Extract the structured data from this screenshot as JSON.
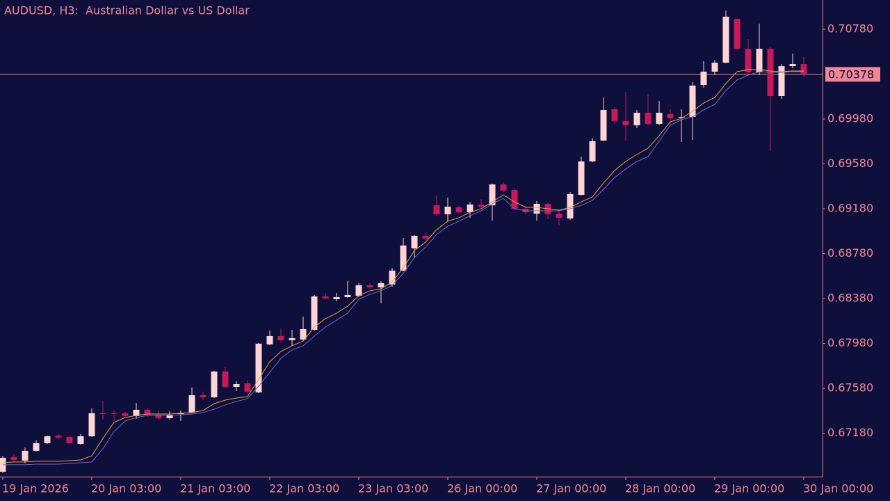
{
  "chart_data": {
    "type": "candlestick",
    "title": "AUDUSD, H3:  Australian Dollar vs US Dollar",
    "categories": [
      "19 Jan 2026",
      null,
      null,
      null,
      null,
      null,
      null,
      null,
      "20 Jan 03:00",
      null,
      null,
      null,
      null,
      null,
      null,
      null,
      "21 Jan 03:00",
      null,
      null,
      null,
      null,
      null,
      null,
      null,
      "22 Jan 03:00",
      null,
      null,
      null,
      null,
      null,
      null,
      null,
      "23 Jan 03:00",
      null,
      null,
      null,
      null,
      null,
      null,
      null,
      "26 Jan 00:00",
      null,
      null,
      null,
      null,
      null,
      null,
      null,
      "27 Jan 00:00",
      null,
      null,
      null,
      null,
      null,
      null,
      null,
      "28 Jan 00:00",
      null,
      null,
      null,
      null,
      null,
      null,
      null,
      "29 Jan 00:00",
      null,
      null,
      null,
      null,
      null,
      null,
      null,
      "30 Jan 00:00"
    ],
    "open": [
      0.66837,
      0.66967,
      0.66936,
      0.67023,
      0.67091,
      0.67159,
      0.67147,
      0.67085,
      0.67153,
      0.67358,
      0.67358,
      0.67358,
      0.67333,
      0.67389,
      0.67345,
      0.67314,
      0.67351,
      0.67364,
      0.67519,
      0.675,
      0.6773,
      0.67593,
      0.67624,
      0.67544,
      0.67971,
      0.68046,
      0.68009,
      0.68015,
      0.68102,
      0.68399,
      0.68374,
      0.68393,
      0.68405,
      0.68498,
      0.6848,
      0.68505,
      0.68629,
      0.68827,
      0.68939,
      0.69211,
      0.69131,
      0.69193,
      0.69149,
      0.69218,
      0.69211,
      0.69397,
      0.69348,
      0.6918,
      0.69137,
      0.69224,
      0.69137,
      0.69094,
      0.69304,
      0.69602,
      0.69788,
      0.70067,
      0.69962,
      0.69924,
      0.70036,
      0.69937,
      0.70024,
      0.69993,
      0.69999,
      0.70284,
      0.70402,
      0.70482,
      0.70873,
      0.70606,
      0.70396,
      0.70606,
      0.70185,
      0.70451,
      0.7047
    ],
    "high": [
      0.66979,
      0.66998,
      0.67054,
      0.67116,
      0.67159,
      0.67172,
      0.67153,
      0.67172,
      0.67401,
      0.67469,
      0.67382,
      0.6737,
      0.67451,
      0.67401,
      0.67382,
      0.67376,
      0.67382,
      0.67587,
      0.6755,
      0.67736,
      0.67773,
      0.67643,
      0.67649,
      0.67984,
      0.68095,
      0.68114,
      0.68102,
      0.68219,
      0.68412,
      0.6843,
      0.6843,
      0.68536,
      0.68517,
      0.68517,
      0.68536,
      0.68653,
      0.6892,
      0.68945,
      0.6897,
      0.69298,
      0.6928,
      0.69205,
      0.69242,
      0.69267,
      0.69404,
      0.69416,
      0.6936,
      0.69205,
      0.69249,
      0.69242,
      0.69168,
      0.69329,
      0.69645,
      0.69813,
      0.70172,
      0.70086,
      0.70222,
      0.70061,
      0.70203,
      0.70141,
      0.70067,
      0.70067,
      0.70309,
      0.70495,
      0.70507,
      0.70947,
      0.70873,
      0.70693,
      0.7083,
      0.70619,
      0.7047,
      0.70563,
      0.70532
    ],
    "low": [
      0.66824,
      0.66924,
      0.66911,
      0.67017,
      0.67085,
      0.67128,
      0.67085,
      0.67079,
      0.67147,
      0.67302,
      0.67289,
      0.6732,
      0.67308,
      0.67327,
      0.67296,
      0.67302,
      0.67289,
      0.67358,
      0.67475,
      0.67494,
      0.67581,
      0.67556,
      0.67531,
      0.67537,
      0.67965,
      0.6799,
      0.67959,
      0.68002,
      0.68095,
      0.68374,
      0.68356,
      0.68387,
      0.68393,
      0.68467,
      0.68337,
      0.68486,
      0.68622,
      0.68746,
      0.68901,
      0.69118,
      0.69069,
      0.69137,
      0.691,
      0.6918,
      0.69075,
      0.69329,
      0.69168,
      0.69131,
      0.69075,
      0.69087,
      0.69032,
      0.69081,
      0.69298,
      0.69596,
      0.69782,
      0.69937,
      0.69788,
      0.699,
      0.69924,
      0.69924,
      0.69924,
      0.69776,
      0.69794,
      0.70259,
      0.70371,
      0.70476,
      0.70594,
      0.70389,
      0.70371,
      0.69695,
      0.7016,
      0.70433,
      0.70358
    ],
    "close": [
      0.66961,
      0.66942,
      0.67023,
      0.67091,
      0.67153,
      0.67141,
      0.67091,
      0.67153,
      0.67358,
      0.67351,
      0.67351,
      0.67333,
      0.67389,
      0.67345,
      0.67314,
      0.67345,
      0.67358,
      0.67519,
      0.675,
      0.6773,
      0.67593,
      0.67618,
      0.6755,
      0.67978,
      0.68046,
      0.68009,
      0.68027,
      0.68108,
      0.68399,
      0.68381,
      0.68393,
      0.68412,
      0.68498,
      0.6848,
      0.68517,
      0.68629,
      0.68853,
      0.68939,
      0.68914,
      0.69131,
      0.69199,
      0.69149,
      0.69218,
      0.69199,
      0.69397,
      0.69342,
      0.6918,
      0.69149,
      0.69224,
      0.69131,
      0.691,
      0.69311,
      0.69602,
      0.69782,
      0.70061,
      0.69962,
      0.69924,
      0.70036,
      0.69937,
      0.70036,
      0.69986,
      0.69999,
      0.70278,
      0.70402,
      0.70482,
      0.70892,
      0.70606,
      0.70396,
      0.70606,
      0.70185,
      0.70451,
      0.7047,
      0.70378
    ],
    "up_color": "#ffd4d4",
    "down_color": "#c8185a",
    "series": [
      {
        "color": "#f0a030",
        "values": [
          0.66917,
          0.66924,
          0.66924,
          0.6693,
          0.6693,
          0.6693,
          0.66936,
          0.66942,
          0.66979,
          0.67134,
          0.67277,
          0.6732,
          0.67339,
          0.67351,
          0.67351,
          0.67351,
          0.67358,
          0.67364,
          0.67382,
          0.67444,
          0.67475,
          0.67494,
          0.67506,
          0.67661,
          0.67816,
          0.67909,
          0.67959,
          0.68002,
          0.68126,
          0.68201,
          0.6825,
          0.68312,
          0.68405,
          0.68449,
          0.68467,
          0.68529,
          0.68653,
          0.68808,
          0.68883,
          0.68994,
          0.69069,
          0.691,
          0.69149,
          0.6918,
          0.69242,
          0.69304,
          0.69242,
          0.69193,
          0.69193,
          0.6918,
          0.69168,
          0.69193,
          0.69242,
          0.69286,
          0.6941,
          0.69521,
          0.69602,
          0.69664,
          0.6972,
          0.69831,
          0.69955,
          0.69986,
          0.70048,
          0.70123,
          0.70172,
          0.70296,
          0.70402,
          0.7042,
          0.7042,
          0.70408,
          0.70402,
          0.70408,
          0.70408
        ]
      },
      {
        "color": "#6a6ad8",
        "values": [
          0.66899,
          0.66899,
          0.66899,
          0.66905,
          0.66905,
          0.66905,
          0.66911,
          0.66917,
          0.66924,
          0.67041,
          0.67196,
          0.67289,
          0.6732,
          0.67339,
          0.67339,
          0.67339,
          0.67345,
          0.67351,
          0.67364,
          0.67395,
          0.67432,
          0.67463,
          0.67488,
          0.67599,
          0.67723,
          0.67847,
          0.67922,
          0.67959,
          0.68046,
          0.68126,
          0.68188,
          0.6825,
          0.68374,
          0.68418,
          0.68449,
          0.68498,
          0.68604,
          0.68746,
          0.68839,
          0.68951,
          0.69025,
          0.69069,
          0.69118,
          0.69162,
          0.69224,
          0.69273,
          0.6918,
          0.69162,
          0.69162,
          0.69162,
          0.69162,
          0.6918,
          0.69211,
          0.69255,
          0.69354,
          0.69459,
          0.69534,
          0.69602,
          0.69645,
          0.69782,
          0.69924,
          0.69974,
          0.69999,
          0.70061,
          0.7011,
          0.70234,
          0.70327,
          0.70371,
          0.70402,
          0.70396,
          0.70396,
          0.70402,
          0.70402
        ]
      }
    ],
    "price_line": 0.70378,
    "price_line_color": "#f08896",
    "ylim": [
      0.66793,
      0.71022
    ],
    "yticks": [
      {
        "value": 0.6718,
        "label": "0.67180"
      },
      {
        "value": 0.6758,
        "label": "0.67580"
      },
      {
        "value": 0.6798,
        "label": "0.67980"
      },
      {
        "value": 0.6838,
        "label": "0.68380"
      },
      {
        "value": 0.6878,
        "label": "0.68780"
      },
      {
        "value": 0.6918,
        "label": "0.69180"
      },
      {
        "value": 0.6958,
        "label": "0.69580"
      },
      {
        "value": 0.6998,
        "label": "0.69980"
      },
      {
        "value": 0.7078,
        "label": "0.70780"
      }
    ],
    "grid": false
  }
}
